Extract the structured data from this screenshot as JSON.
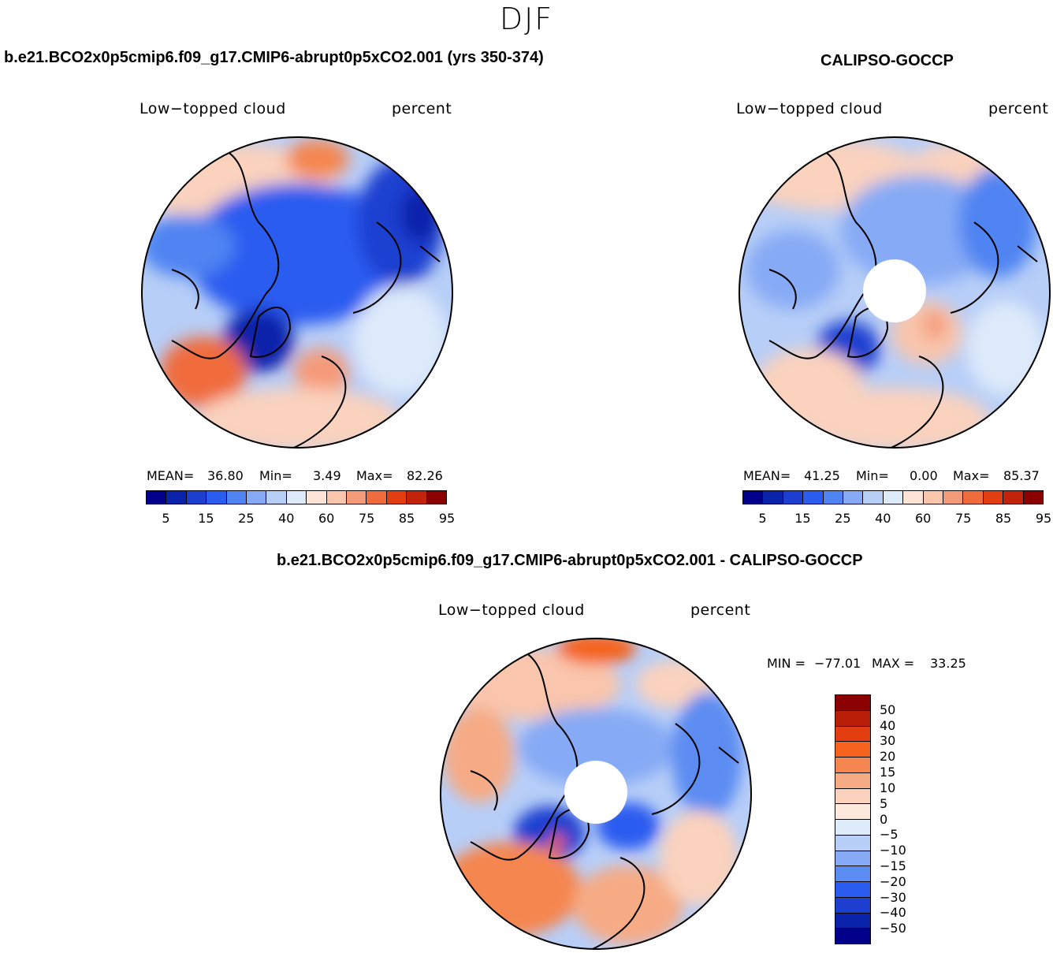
{
  "season": "DJF",
  "panel_model": {
    "title": "b.e21.BCO2x0p5cmip6.f09_g17.CMIP6-abrupt0p5xCO2.001 (yrs 350-374)",
    "variable": "Low−topped  cloud",
    "units": "percent",
    "mean_label": "MEAN=",
    "mean_value": "36.80",
    "min_label": "Min=",
    "min_value": "3.49",
    "max_label": "Max=",
    "max_value": "82.26"
  },
  "panel_obs": {
    "title": "CALIPSO-GOCCP",
    "variable": "Low−topped  cloud",
    "units": "percent",
    "mean_label": "MEAN=",
    "mean_value": "41.25",
    "min_label": "Min=",
    "min_value": "0.00",
    "max_label": "Max=",
    "max_value": "85.37"
  },
  "panel_diff": {
    "title": "b.e21.BCO2x0p5cmip6.f09_g17.CMIP6-abrupt0p5xCO2.001 - CALIPSO-GOCCP",
    "variable": "Low−topped  cloud",
    "units": "percent",
    "min_label": "MIN =",
    "min_value": "−77.01",
    "max_label": "MAX =",
    "max_value": "33.25"
  },
  "abs_colorbar": {
    "ticks": [
      "5",
      "15",
      "25",
      "40",
      "60",
      "75",
      "85",
      "95"
    ],
    "colors": [
      "#00008b",
      "#0a22aa",
      "#1c3fd0",
      "#2b5cf0",
      "#4f84f2",
      "#86aaf5",
      "#b7cef7",
      "#ddeafa",
      "#fde4d6",
      "#f9c5ac",
      "#f59a78",
      "#f06c3c",
      "#e33d12",
      "#c2230a",
      "#8b0000"
    ]
  },
  "diff_colorbar": {
    "ticks": [
      "50",
      "40",
      "30",
      "20",
      "15",
      "10",
      "5",
      "0",
      "−5",
      "−10",
      "−15",
      "−20",
      "−30",
      "−40",
      "−50"
    ],
    "colors": [
      "#8b0000",
      "#b81f06",
      "#e33d12",
      "#f5631f",
      "#f58650",
      "#f6ab85",
      "#fad2bd",
      "#fde8dc",
      "#ddeafa",
      "#b7cef7",
      "#86aaf5",
      "#5b8cf2",
      "#2b5cf0",
      "#1c3fd0",
      "#0a22aa",
      "#00008b"
    ]
  }
}
